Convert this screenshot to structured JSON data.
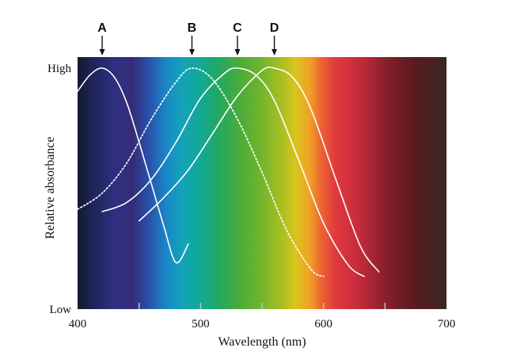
{
  "chart_data": {
    "type": "line",
    "xlabel": "Wavelength (nm)",
    "ylabel": "Relative absorbance",
    "xlim": [
      400,
      700
    ],
    "x_ticks": [
      400,
      500,
      600,
      700
    ],
    "minor_x_ticks": [
      450,
      550,
      650
    ],
    "y_tick_labels": [
      "High",
      "Low"
    ],
    "ylim": [
      0,
      1
    ],
    "background": "visible spectrum gradient (violet to dark red)",
    "peak_markers": [
      {
        "label": "A",
        "x": 420
      },
      {
        "label": "B",
        "x": 493
      },
      {
        "label": "C",
        "x": 530
      },
      {
        "label": "D",
        "x": 560
      }
    ],
    "series": [
      {
        "name": "A",
        "style": "solid",
        "x": [
          400,
          410,
          420,
          430,
          440,
          450,
          460,
          470,
          480,
          490
        ],
        "y": [
          0.9,
          0.97,
          1.0,
          0.96,
          0.85,
          0.68,
          0.5,
          0.32,
          0.16,
          0.24
        ]
      },
      {
        "name": "B",
        "style": "dotted",
        "x": [
          400,
          420,
          440,
          460,
          480,
          493,
          510,
          530,
          550,
          570,
          590,
          600
        ],
        "y": [
          0.39,
          0.46,
          0.59,
          0.78,
          0.94,
          1.0,
          0.95,
          0.78,
          0.55,
          0.3,
          0.13,
          0.1
        ]
      },
      {
        "name": "C",
        "style": "solid",
        "x": [
          420,
          440,
          460,
          480,
          500,
          520,
          530,
          545,
          560,
          580,
          600,
          620,
          633
        ],
        "y": [
          0.38,
          0.42,
          0.52,
          0.68,
          0.87,
          0.98,
          1.0,
          0.97,
          0.86,
          0.6,
          0.33,
          0.15,
          0.1
        ]
      },
      {
        "name": "D",
        "style": "solid",
        "x": [
          450,
          470,
          490,
          510,
          530,
          550,
          560,
          575,
          590,
          610,
          630,
          645
        ],
        "y": [
          0.34,
          0.44,
          0.56,
          0.72,
          0.88,
          0.99,
          1.0,
          0.96,
          0.82,
          0.52,
          0.23,
          0.12
        ]
      }
    ]
  }
}
